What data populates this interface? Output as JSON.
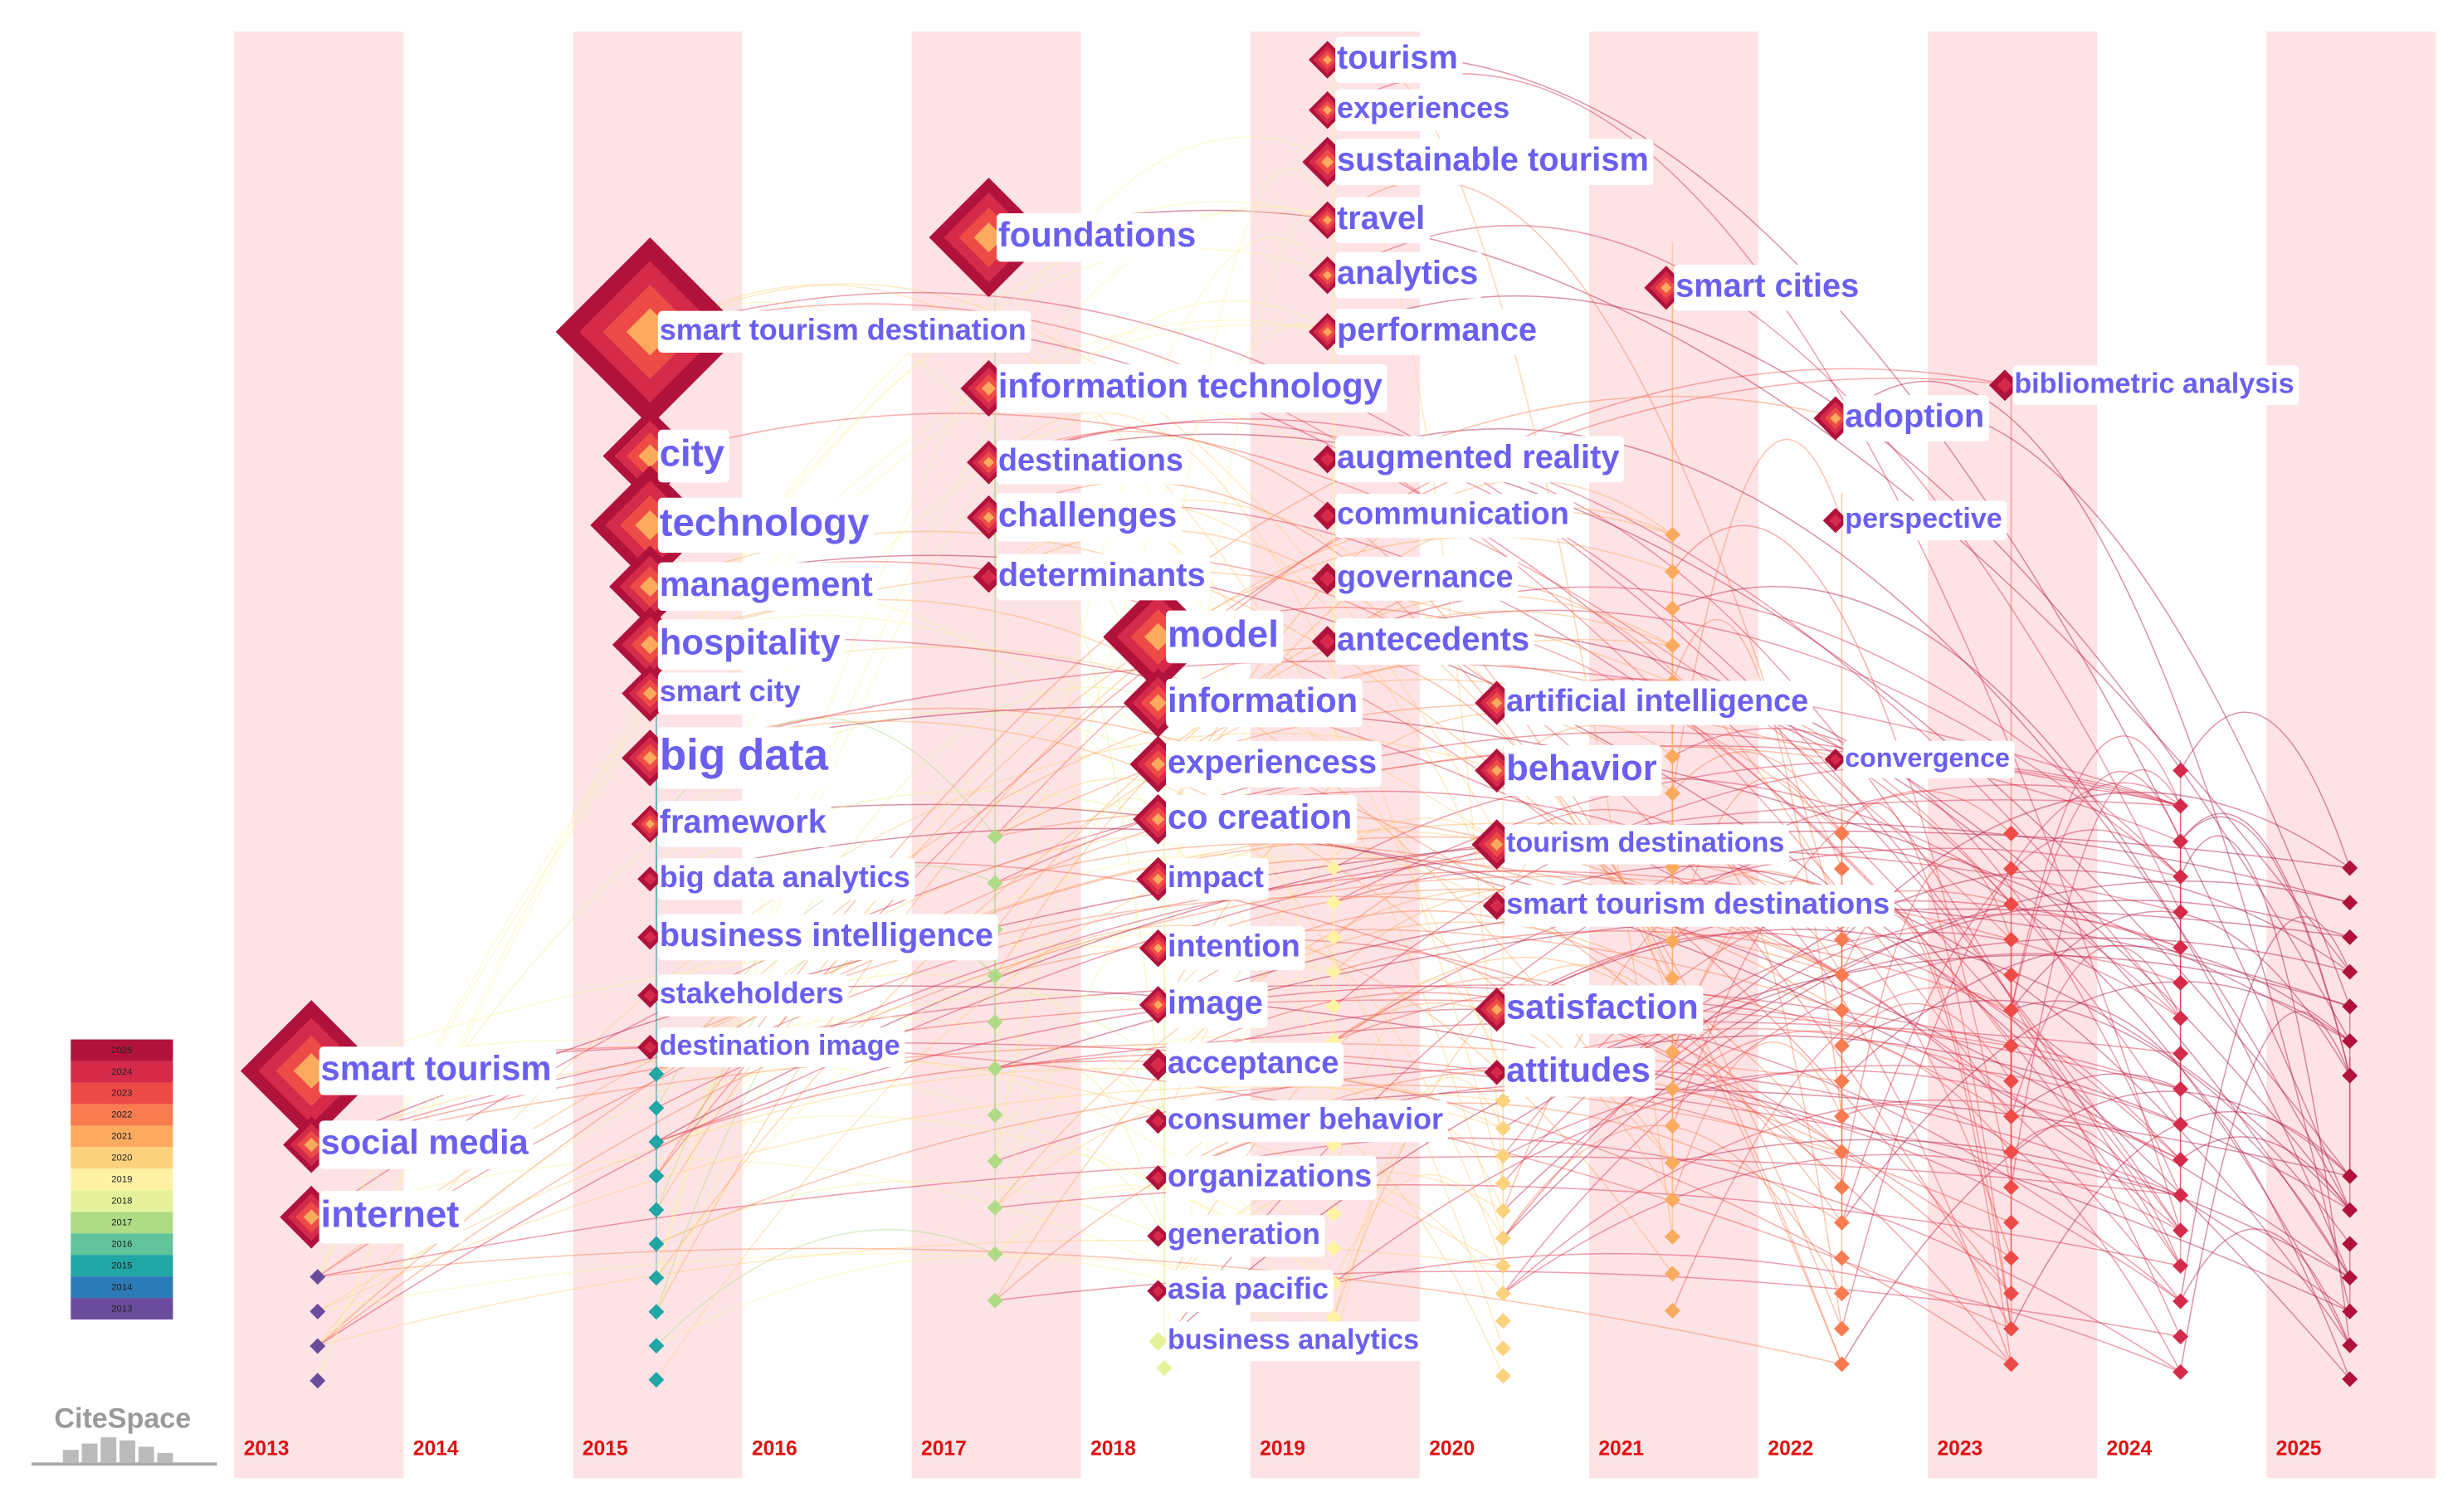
{
  "timeline": {
    "years": [
      "2013",
      "2014",
      "2015",
      "2016",
      "2017",
      "2018",
      "2019",
      "2020",
      "2021",
      "2022",
      "2023",
      "2024",
      "2025"
    ]
  },
  "legend": {
    "years": [
      "2025",
      "2024",
      "2023",
      "2022",
      "2021",
      "2020",
      "2019",
      "2018",
      "2017",
      "2016",
      "2015",
      "2014",
      "2013"
    ],
    "colors": [
      "#b0123c",
      "#d62a4a",
      "#ee4b47",
      "#f87c4f",
      "#fcaa5e",
      "#fdd27d",
      "#fff3a3",
      "#e6f29a",
      "#aedb84",
      "#62c39b",
      "#21a6a6",
      "#2b7bb8",
      "#6a4c9c"
    ]
  },
  "logo": "CiteSpace",
  "clusters": [
    {
      "labels": [
        "smart tourism",
        "social media",
        "internet"
      ]
    },
    {
      "labels": [
        "smart tourism destination",
        "city",
        "technology",
        "management",
        "hospitality",
        "smart city",
        "big data",
        "framework",
        "big data analytics",
        "business intelligence",
        "stakeholders",
        "destination image"
      ]
    },
    {
      "labels": [
        "foundations",
        "information technology",
        "destinations",
        "challenges",
        "determinants"
      ]
    },
    {
      "labels": [
        "model",
        "information",
        "experiencess",
        "co creation",
        "impact",
        "intention",
        "image",
        "acceptance",
        "consumer behavior",
        "organizations",
        "generation",
        "asia pacific",
        "business analytics"
      ]
    },
    {
      "labels": [
        "tourism",
        "experiences",
        "sustainable tourism",
        "travel",
        "analytics",
        "performance",
        "augmented reality",
        "communication",
        "governance",
        "antecedents"
      ]
    },
    {
      "labels": [
        "artificial intelligence",
        "behavior",
        "tourism destinations",
        "smart tourism destinations",
        "satisfaction",
        "attitudes"
      ]
    },
    {
      "labels": [
        "smart cities"
      ]
    },
    {
      "labels": [
        "adoption",
        "perspective",
        "convergence"
      ]
    },
    {
      "labels": [
        "bibliometric analysis"
      ]
    }
  ]
}
